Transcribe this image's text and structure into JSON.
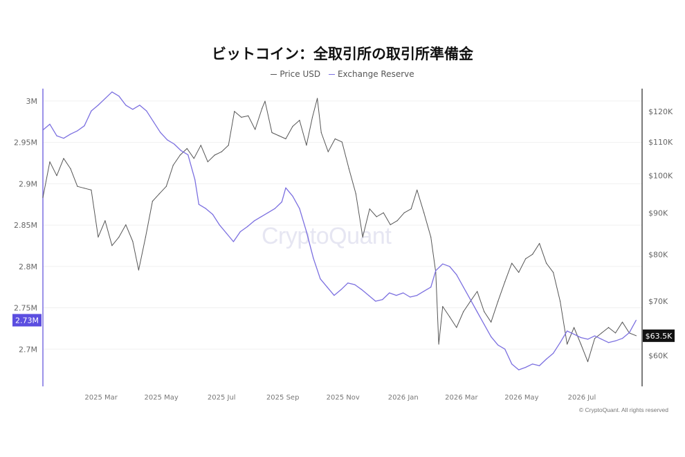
{
  "title": "ビットコイン：全取引所の取引所準備金",
  "watermark": "CryptoQuant",
  "copyright": "© CryptoQuant. All rights reserved",
  "legend": [
    {
      "name": "Price USD",
      "color": "#555555"
    },
    {
      "name": "Exchange Reserve",
      "color": "#7b6fe0"
    }
  ],
  "chart_data": {
    "type": "line",
    "x_range": [
      "2025-01-01",
      "2026-08-31"
    ],
    "x_ticks": [
      {
        "date": "2025-03-01",
        "label": "2025 Mar"
      },
      {
        "date": "2025-05-01",
        "label": "2025 May"
      },
      {
        "date": "2025-07-01",
        "label": "2025 Jul"
      },
      {
        "date": "2025-09-01",
        "label": "2025 Sep"
      },
      {
        "date": "2025-11-01",
        "label": "2025 Nov"
      },
      {
        "date": "2026-01-01",
        "label": "2026 Jan"
      },
      {
        "date": "2026-03-01",
        "label": "2026 Mar"
      },
      {
        "date": "2026-05-01",
        "label": "2026 May"
      },
      {
        "date": "2026-07-01",
        "label": "2026 Jul"
      }
    ],
    "y_left": {
      "ylim": [
        2.655,
        3.015
      ],
      "ticks": [
        {
          "v": 3.0,
          "label": "3M"
        },
        {
          "v": 2.95,
          "label": "2.95M"
        },
        {
          "v": 2.9,
          "label": "2.9M"
        },
        {
          "v": 2.85,
          "label": "2.85M"
        },
        {
          "v": 2.8,
          "label": "2.8M"
        },
        {
          "v": 2.75,
          "label": "2.75M"
        },
        {
          "v": 2.7,
          "label": "2.7M"
        }
      ]
    },
    "y_right": {
      "scale": "log",
      "ylim": [
        55000,
        128000
      ],
      "ticks": [
        {
          "v": 120000,
          "label": "$120K"
        },
        {
          "v": 110000,
          "label": "$110K"
        },
        {
          "v": 100000,
          "label": "$100K"
        },
        {
          "v": 90000,
          "label": "$90K"
        },
        {
          "v": 80000,
          "label": "$80K"
        },
        {
          "v": 70000,
          "label": "$70K"
        },
        {
          "v": 60000,
          "label": "$60K"
        }
      ]
    },
    "current_labels": {
      "reserve": "2.73M",
      "price": "$63.5K"
    },
    "series": [
      {
        "name": "Price USD",
        "axis": "right",
        "color": "#555555",
        "points": [
          [
            "2025-01-01",
            94000
          ],
          [
            "2025-01-08",
            104000
          ],
          [
            "2025-01-15",
            100000
          ],
          [
            "2025-01-22",
            105000
          ],
          [
            "2025-01-29",
            102000
          ],
          [
            "2025-02-05",
            97000
          ],
          [
            "2025-02-12",
            96500
          ],
          [
            "2025-02-19",
            96000
          ],
          [
            "2025-02-26",
            84000
          ],
          [
            "2025-03-05",
            88000
          ],
          [
            "2025-03-12",
            82000
          ],
          [
            "2025-03-19",
            84000
          ],
          [
            "2025-03-26",
            87000
          ],
          [
            "2025-04-02",
            83000
          ],
          [
            "2025-04-08",
            76500
          ],
          [
            "2025-04-15",
            84000
          ],
          [
            "2025-04-22",
            93000
          ],
          [
            "2025-04-29",
            95000
          ],
          [
            "2025-05-06",
            97000
          ],
          [
            "2025-05-13",
            103000
          ],
          [
            "2025-05-20",
            106000
          ],
          [
            "2025-05-27",
            108000
          ],
          [
            "2025-06-03",
            105000
          ],
          [
            "2025-06-10",
            109000
          ],
          [
            "2025-06-17",
            104000
          ],
          [
            "2025-06-24",
            106000
          ],
          [
            "2025-07-01",
            107000
          ],
          [
            "2025-07-08",
            109000
          ],
          [
            "2025-07-14",
            120000
          ],
          [
            "2025-07-21",
            118000
          ],
          [
            "2025-07-28",
            118500
          ],
          [
            "2025-08-04",
            114000
          ],
          [
            "2025-08-11",
            121000
          ],
          [
            "2025-08-14",
            123500
          ],
          [
            "2025-08-21",
            113000
          ],
          [
            "2025-08-28",
            112000
          ],
          [
            "2025-09-04",
            111000
          ],
          [
            "2025-09-11",
            115000
          ],
          [
            "2025-09-18",
            117000
          ],
          [
            "2025-09-25",
            109000
          ],
          [
            "2025-10-01",
            118000
          ],
          [
            "2025-10-06",
            124500
          ],
          [
            "2025-10-10",
            113000
          ],
          [
            "2025-10-17",
            107000
          ],
          [
            "2025-10-24",
            111000
          ],
          [
            "2025-10-31",
            110000
          ],
          [
            "2025-11-07",
            102000
          ],
          [
            "2025-11-14",
            95000
          ],
          [
            "2025-11-21",
            84000
          ],
          [
            "2025-11-28",
            91000
          ],
          [
            "2025-12-05",
            89000
          ],
          [
            "2025-12-12",
            90000
          ],
          [
            "2025-12-19",
            87000
          ],
          [
            "2025-12-26",
            88000
          ],
          [
            "2026-01-02",
            90000
          ],
          [
            "2026-01-09",
            91000
          ],
          [
            "2026-01-15",
            96000
          ],
          [
            "2026-01-22",
            90000
          ],
          [
            "2026-01-29",
            84000
          ],
          [
            "2026-02-03",
            76000
          ],
          [
            "2026-02-06",
            62000
          ],
          [
            "2026-02-10",
            69000
          ],
          [
            "2026-02-17",
            67000
          ],
          [
            "2026-02-24",
            65000
          ],
          [
            "2026-03-03",
            68000
          ],
          [
            "2026-03-10",
            70000
          ],
          [
            "2026-03-17",
            72000
          ],
          [
            "2026-03-24",
            68000
          ],
          [
            "2026-03-31",
            66000
          ],
          [
            "2026-04-07",
            70000
          ],
          [
            "2026-04-14",
            74000
          ],
          [
            "2026-04-21",
            78000
          ],
          [
            "2026-04-28",
            76000
          ],
          [
            "2026-05-05",
            79000
          ],
          [
            "2026-05-12",
            80000
          ],
          [
            "2026-05-19",
            82500
          ],
          [
            "2026-05-26",
            78000
          ],
          [
            "2026-06-02",
            76000
          ],
          [
            "2026-06-09",
            70000
          ],
          [
            "2026-06-16",
            62000
          ],
          [
            "2026-06-23",
            65000
          ],
          [
            "2026-06-30",
            62000
          ],
          [
            "2026-07-07",
            59000
          ],
          [
            "2026-07-14",
            63000
          ],
          [
            "2026-07-21",
            64000
          ],
          [
            "2026-07-28",
            65000
          ],
          [
            "2026-08-04",
            64000
          ],
          [
            "2026-08-11",
            66000
          ],
          [
            "2026-08-18",
            64000
          ],
          [
            "2026-08-25",
            63500
          ]
        ]
      },
      {
        "name": "Exchange Reserve",
        "axis": "left",
        "color": "#7b6fe0",
        "points": [
          [
            "2025-01-01",
            2.965
          ],
          [
            "2025-01-08",
            2.972
          ],
          [
            "2025-01-15",
            2.958
          ],
          [
            "2025-01-22",
            2.955
          ],
          [
            "2025-01-29",
            2.96
          ],
          [
            "2025-02-05",
            2.964
          ],
          [
            "2025-02-12",
            2.97
          ],
          [
            "2025-02-19",
            2.988
          ],
          [
            "2025-02-26",
            2.995
          ],
          [
            "2025-03-05",
            3.003
          ],
          [
            "2025-03-12",
            3.011
          ],
          [
            "2025-03-19",
            3.006
          ],
          [
            "2025-03-26",
            2.995
          ],
          [
            "2025-04-02",
            2.99
          ],
          [
            "2025-04-09",
            2.995
          ],
          [
            "2025-04-16",
            2.988
          ],
          [
            "2025-04-23",
            2.975
          ],
          [
            "2025-04-30",
            2.962
          ],
          [
            "2025-05-07",
            2.953
          ],
          [
            "2025-05-14",
            2.948
          ],
          [
            "2025-05-21",
            2.94
          ],
          [
            "2025-05-28",
            2.935
          ],
          [
            "2025-06-04",
            2.905
          ],
          [
            "2025-06-08",
            2.875
          ],
          [
            "2025-06-15",
            2.87
          ],
          [
            "2025-06-22",
            2.863
          ],
          [
            "2025-06-29",
            2.85
          ],
          [
            "2025-07-06",
            2.84
          ],
          [
            "2025-07-13",
            2.83
          ],
          [
            "2025-07-20",
            2.842
          ],
          [
            "2025-07-27",
            2.848
          ],
          [
            "2025-08-03",
            2.855
          ],
          [
            "2025-08-10",
            2.86
          ],
          [
            "2025-08-17",
            2.865
          ],
          [
            "2025-08-24",
            2.87
          ],
          [
            "2025-08-31",
            2.878
          ],
          [
            "2025-09-04",
            2.895
          ],
          [
            "2025-09-11",
            2.885
          ],
          [
            "2025-09-18",
            2.87
          ],
          [
            "2025-09-25",
            2.842
          ],
          [
            "2025-10-02",
            2.81
          ],
          [
            "2025-10-09",
            2.785
          ],
          [
            "2025-10-16",
            2.775
          ],
          [
            "2025-10-23",
            2.765
          ],
          [
            "2025-10-30",
            2.772
          ],
          [
            "2025-11-06",
            2.78
          ],
          [
            "2025-11-13",
            2.778
          ],
          [
            "2025-11-20",
            2.772
          ],
          [
            "2025-11-27",
            2.765
          ],
          [
            "2025-12-04",
            2.758
          ],
          [
            "2025-12-11",
            2.76
          ],
          [
            "2025-12-18",
            2.768
          ],
          [
            "2025-12-25",
            2.765
          ],
          [
            "2026-01-01",
            2.768
          ],
          [
            "2026-01-08",
            2.763
          ],
          [
            "2026-01-15",
            2.765
          ],
          [
            "2026-01-22",
            2.77
          ],
          [
            "2026-01-29",
            2.775
          ],
          [
            "2026-02-03",
            2.795
          ],
          [
            "2026-02-10",
            2.803
          ],
          [
            "2026-02-17",
            2.8
          ],
          [
            "2026-02-24",
            2.79
          ],
          [
            "2026-03-03",
            2.775
          ],
          [
            "2026-03-10",
            2.76
          ],
          [
            "2026-03-17",
            2.745
          ],
          [
            "2026-03-24",
            2.73
          ],
          [
            "2026-03-31",
            2.715
          ],
          [
            "2026-04-07",
            2.705
          ],
          [
            "2026-04-14",
            2.7
          ],
          [
            "2026-04-21",
            2.682
          ],
          [
            "2026-04-28",
            2.675
          ],
          [
            "2026-05-05",
            2.678
          ],
          [
            "2026-05-12",
            2.682
          ],
          [
            "2026-05-19",
            2.68
          ],
          [
            "2026-05-26",
            2.688
          ],
          [
            "2026-06-02",
            2.695
          ],
          [
            "2026-06-09",
            2.708
          ],
          [
            "2026-06-16",
            2.722
          ],
          [
            "2026-06-23",
            2.718
          ],
          [
            "2026-06-30",
            2.714
          ],
          [
            "2026-07-07",
            2.712
          ],
          [
            "2026-07-14",
            2.716
          ],
          [
            "2026-07-21",
            2.712
          ],
          [
            "2026-07-28",
            2.708
          ],
          [
            "2026-08-04",
            2.71
          ],
          [
            "2026-08-11",
            2.713
          ],
          [
            "2026-08-18",
            2.72
          ],
          [
            "2026-08-25",
            2.735
          ]
        ]
      }
    ]
  }
}
